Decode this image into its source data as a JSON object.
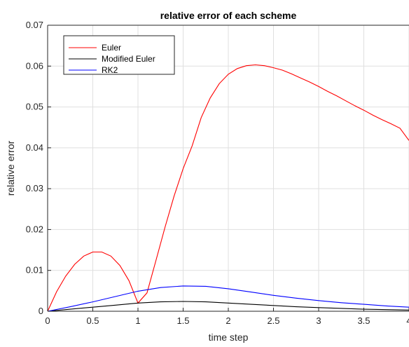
{
  "chart_data": {
    "type": "line",
    "title": "relative error of each scheme",
    "xlabel": "time step",
    "ylabel": "relative error",
    "xlim": [
      0,
      4
    ],
    "ylim": [
      0,
      0.07
    ],
    "x_ticks": [
      0,
      0.5,
      1,
      1.5,
      2,
      2.5,
      3,
      3.5,
      4
    ],
    "x_tick_labels": [
      "0",
      "0.5",
      "1",
      "1.5",
      "2",
      "2.5",
      "3",
      "3.5",
      "4"
    ],
    "y_ticks": [
      0,
      0.01,
      0.02,
      0.03,
      0.04,
      0.05,
      0.06,
      0.07
    ],
    "y_tick_labels": [
      "0",
      "0.01",
      "0.02",
      "0.03",
      "0.04",
      "0.05",
      "0.06",
      "0.07"
    ],
    "grid": true,
    "legend_position": "top-left",
    "series": [
      {
        "name": "Euler",
        "color": "#ff0000",
        "x": [
          0,
          0.1,
          0.2,
          0.3,
          0.4,
          0.5,
          0.6,
          0.7,
          0.8,
          0.9,
          1.0,
          1.1,
          1.2,
          1.3,
          1.4,
          1.5,
          1.6,
          1.7,
          1.8,
          1.9,
          2.0,
          2.1,
          2.2,
          2.3,
          2.4,
          2.5,
          2.6,
          2.7,
          2.8,
          2.9,
          3.0,
          3.1,
          3.2,
          3.3,
          3.4,
          3.5,
          3.6,
          3.7,
          3.8,
          3.9,
          4.0
        ],
        "y": [
          0,
          0.0048,
          0.0086,
          0.0115,
          0.0135,
          0.0145,
          0.0145,
          0.0135,
          0.0112,
          0.0075,
          0.002,
          0.0045,
          0.0125,
          0.0206,
          0.0282,
          0.0349,
          0.0405,
          0.0474,
          0.0522,
          0.0557,
          0.058,
          0.0594,
          0.0601,
          0.0603,
          0.0601,
          0.0596,
          0.059,
          0.0581,
          0.0571,
          0.0561,
          0.055,
          0.0538,
          0.0527,
          0.0515,
          0.0503,
          0.0492,
          0.048,
          0.0469,
          0.0459,
          0.0448,
          0.0418
        ]
      },
      {
        "name": "Modified Euler",
        "color": "#000000",
        "x": [
          0,
          0.25,
          0.5,
          0.75,
          1.0,
          1.25,
          1.5,
          1.75,
          2.0,
          2.25,
          2.5,
          2.75,
          3.0,
          3.25,
          3.5,
          3.75,
          4.0
        ],
        "y": [
          0,
          0.0005,
          0.001,
          0.0015,
          0.002,
          0.0023,
          0.0024,
          0.0023,
          0.002,
          0.0017,
          0.0014,
          0.0011,
          0.0009,
          0.0007,
          0.0005,
          0.0004,
          0.0003
        ]
      },
      {
        "name": "RK2",
        "color": "#0000ff",
        "x": [
          0,
          0.25,
          0.5,
          0.75,
          1.0,
          1.25,
          1.5,
          1.75,
          2.0,
          2.25,
          2.5,
          2.75,
          3.0,
          3.25,
          3.5,
          3.75,
          4.0
        ],
        "y": [
          0,
          0.0011,
          0.0023,
          0.0036,
          0.0049,
          0.0058,
          0.0062,
          0.0061,
          0.0055,
          0.0047,
          0.0039,
          0.0032,
          0.0026,
          0.0021,
          0.0017,
          0.0013,
          0.001
        ]
      }
    ]
  }
}
